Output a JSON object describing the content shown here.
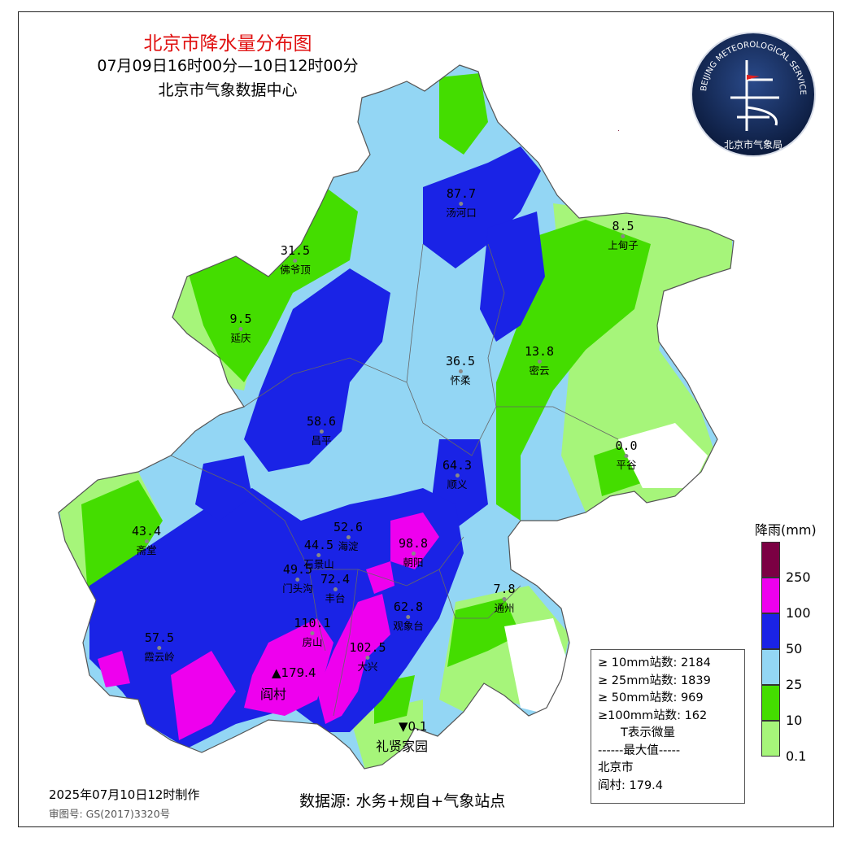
{
  "title": "北京市降水量分布图",
  "period": "07月09日16时00分—10日12时00分",
  "agency": "北京市气象数据中心",
  "logo": {
    "text_top": "BEIJING METEOROLOGICAL SERVICE",
    "text_bottom": "北京市气象局"
  },
  "stations": [
    {
      "name": "汤河口",
      "value": "87.7"
    },
    {
      "name": "佛爷顶",
      "value": "31.5"
    },
    {
      "name": "上甸子",
      "value": "8.5"
    },
    {
      "name": "延庆",
      "value": "9.5"
    },
    {
      "name": "怀柔",
      "value": "36.5"
    },
    {
      "name": "密云",
      "value": "13.8"
    },
    {
      "name": "昌平",
      "value": "58.6"
    },
    {
      "name": "平谷",
      "value": "0.0"
    },
    {
      "name": "顺义",
      "value": "64.3"
    },
    {
      "name": "斋堂",
      "value": "43.4"
    },
    {
      "name": "海淀",
      "value": "52.6"
    },
    {
      "name": "朝阳",
      "value": "98.8"
    },
    {
      "name": "石景山",
      "value": "44.5"
    },
    {
      "name": "门头沟",
      "value": "49.5"
    },
    {
      "name": "丰台",
      "value": "72.4"
    },
    {
      "name": "通州",
      "value": "7.8"
    },
    {
      "name": "观象台",
      "value": "62.8"
    },
    {
      "name": "霞云岭",
      "value": "57.5"
    },
    {
      "name": "房山",
      "value": "110.1"
    },
    {
      "name": "大兴",
      "value": "102.5"
    }
  ],
  "max_marker": {
    "symbol": "▲",
    "value": "179.4",
    "name": "阎村"
  },
  "min_marker": {
    "symbol": "▼",
    "value": "0.1",
    "name": "礼贤家园"
  },
  "legend": {
    "title": "降雨(mm)",
    "levels": [
      {
        "label": "250",
        "color": "#7b0043"
      },
      {
        "label": "100",
        "color": "#ee00ee"
      },
      {
        "label": "50",
        "color": "#1a23e6"
      },
      {
        "label": "25",
        "color": "#93d6f4"
      },
      {
        "label": "10",
        "color": "#44dd00"
      },
      {
        "label": "0.1",
        "color": "#a6f57a"
      }
    ]
  },
  "stats": {
    "line1": "≥ 10mm站数: 2184",
    "line2": "≥ 25mm站数: 1839",
    "line3": "≥ 50mm站数: 969",
    "line4": "≥100mm站数: 162",
    "line5": "T表示微量",
    "line6": "------最大值-----",
    "line7": "北京市",
    "line8": "阎村: 179.4"
  },
  "footer": {
    "made": "2025年07月10日12时制作",
    "approval": "审图号: GS(2017)3320号",
    "source": "数据源: 水务+规自+气象站点"
  },
  "colors": {
    "title": "#e01010",
    "boundary_outside": "#8a2f4f",
    "no_rain": "#ffffff"
  }
}
